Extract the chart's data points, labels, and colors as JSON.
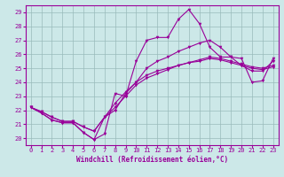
{
  "xlabel": "Windchill (Refroidissement éolien,°C)",
  "xlim": [
    -0.5,
    23.5
  ],
  "ylim": [
    19.5,
    29.5
  ],
  "yticks": [
    20,
    21,
    22,
    23,
    24,
    25,
    26,
    27,
    28,
    29
  ],
  "xticks": [
    0,
    1,
    2,
    3,
    4,
    5,
    6,
    7,
    8,
    9,
    10,
    11,
    12,
    13,
    14,
    15,
    16,
    17,
    18,
    19,
    20,
    21,
    22,
    23
  ],
  "bg_color": "#cce8e8",
  "line_color": "#990099",
  "grid_color": "#99bbbb",
  "series": [
    [
      22.2,
      21.8,
      21.3,
      21.1,
      21.1,
      20.4,
      19.9,
      20.3,
      23.2,
      23.0,
      25.5,
      27.0,
      27.2,
      27.2,
      28.5,
      29.2,
      28.2,
      26.5,
      25.8,
      25.8,
      25.7,
      24.0,
      24.1,
      25.7
    ],
    [
      22.2,
      21.8,
      21.3,
      21.1,
      21.1,
      20.4,
      19.9,
      21.5,
      22.0,
      23.2,
      24.0,
      25.0,
      25.5,
      25.8,
      26.2,
      26.5,
      26.8,
      27.0,
      26.5,
      25.8,
      25.2,
      24.8,
      24.8,
      25.5
    ],
    [
      22.2,
      21.9,
      21.5,
      21.2,
      21.2,
      20.8,
      20.5,
      21.5,
      22.2,
      23.0,
      23.8,
      24.3,
      24.6,
      24.9,
      25.2,
      25.4,
      25.6,
      25.8,
      25.7,
      25.5,
      25.3,
      25.1,
      25.0,
      25.2
    ],
    [
      22.2,
      21.9,
      21.5,
      21.2,
      21.2,
      20.8,
      20.5,
      21.5,
      22.5,
      23.3,
      24.0,
      24.5,
      24.8,
      25.0,
      25.2,
      25.4,
      25.5,
      25.7,
      25.6,
      25.4,
      25.2,
      25.0,
      24.9,
      25.1
    ]
  ],
  "tick_fontsize": 5,
  "xlabel_fontsize": 5.5
}
